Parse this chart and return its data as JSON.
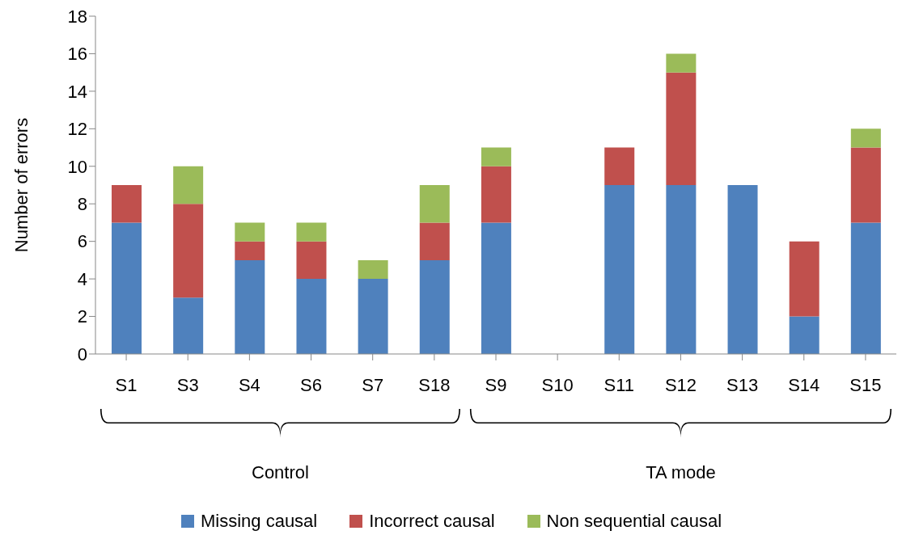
{
  "chart_data": {
    "type": "bar",
    "stacked": true,
    "ylabel": "Number of errors",
    "categories": [
      "S1",
      "S3",
      "S4",
      "S6",
      "S7",
      "S18",
      "S9",
      "S10",
      "S11",
      "S12",
      "S13",
      "S14",
      "S15"
    ],
    "series": [
      {
        "name": "Missing causal",
        "color": "#4f81bd",
        "values": [
          7,
          3,
          5,
          4,
          4,
          5,
          7,
          0,
          9,
          9,
          9,
          2,
          7
        ]
      },
      {
        "name": "Incorrect causal",
        "color": "#c0504d",
        "values": [
          2,
          5,
          1,
          2,
          0,
          2,
          3,
          0,
          2,
          6,
          0,
          4,
          4
        ]
      },
      {
        "name": "Non sequential causal",
        "color": "#9bbb59",
        "values": [
          0,
          2,
          1,
          1,
          1,
          2,
          1,
          0,
          0,
          1,
          0,
          0,
          1
        ]
      }
    ],
    "ylim": [
      0,
      18
    ],
    "yticks": [
      0,
      2,
      4,
      6,
      8,
      10,
      12,
      14,
      16,
      18
    ],
    "legend": "bottom",
    "annotations": [
      "Control",
      "TA mode"
    ]
  }
}
